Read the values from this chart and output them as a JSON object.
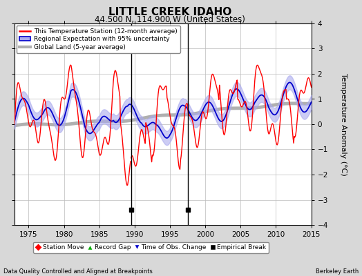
{
  "title": "LITTLE CREEK IDAHO",
  "subtitle": "44.500 N, 114.900 W (United States)",
  "ylabel": "Temperature Anomaly (°C)",
  "xlabel_note": "Data Quality Controlled and Aligned at Breakpoints",
  "credit": "Berkeley Earth",
  "xlim": [
    1973,
    2015
  ],
  "ylim": [
    -4,
    4
  ],
  "yticks": [
    -4,
    -3,
    -2,
    -1,
    0,
    1,
    2,
    3,
    4
  ],
  "xticks": [
    1975,
    1980,
    1985,
    1990,
    1995,
    2000,
    2005,
    2010,
    2015
  ],
  "bg_color": "#d8d8d8",
  "plot_bg_color": "#ffffff",
  "grid_color": "#bbbbbb",
  "station_line_color": "#ff0000",
  "regional_line_color": "#0000cc",
  "regional_fill_color": "#aaaaee",
  "global_line_color": "#b0b0b0",
  "empirical_break_years": [
    1989.5,
    1997.5
  ],
  "break_marker_y": -3.4
}
